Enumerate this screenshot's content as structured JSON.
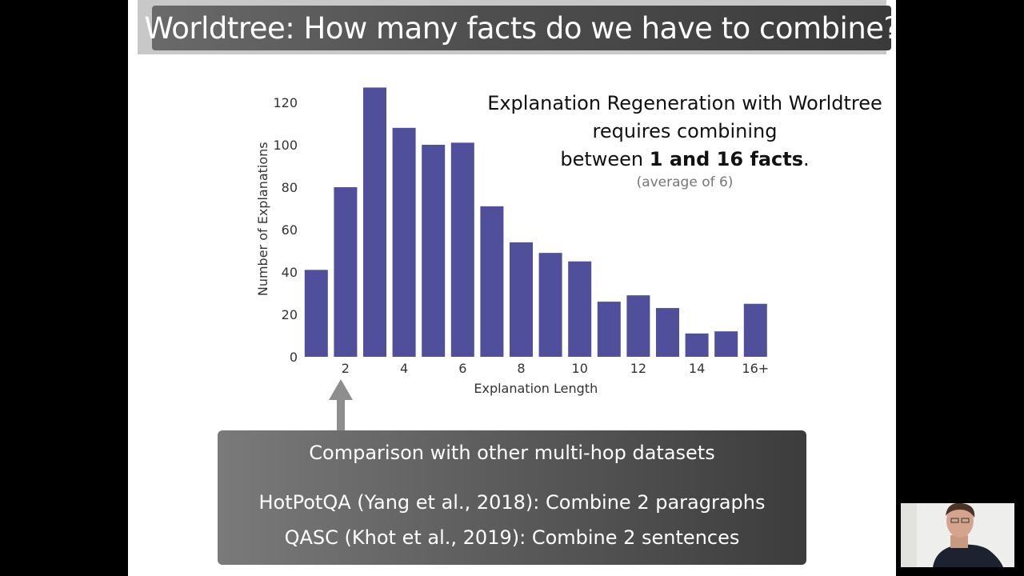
{
  "slide": {
    "title": "Worldtree: How many facts do we have to combine?"
  },
  "chart_data": {
    "type": "bar",
    "title": "",
    "xlabel": "Explanation Length",
    "ylabel": "Number of Explanations",
    "categories": [
      "1",
      "2",
      "3",
      "4",
      "5",
      "6",
      "7",
      "8",
      "9",
      "10",
      "11",
      "12",
      "13",
      "14",
      "15",
      "16+"
    ],
    "values": [
      41,
      80,
      127,
      108,
      100,
      101,
      71,
      54,
      49,
      45,
      26,
      29,
      23,
      11,
      12,
      25
    ],
    "x_tick_labels": [
      "2",
      "4",
      "6",
      "8",
      "10",
      "12",
      "14",
      "16+"
    ],
    "y_ticks": [
      0,
      20,
      40,
      60,
      80,
      100,
      120
    ],
    "ylim": [
      0,
      130
    ],
    "bar_color": "#4f4f9c",
    "grid": false,
    "legend": "none"
  },
  "note": {
    "line1": "Explanation Regeneration with Worldtree",
    "line2": "requires combining",
    "line3_prefix": "between ",
    "line3_bold": "1 and 16 facts",
    "line3_suffix": ".",
    "sub": "(average of 6)"
  },
  "comparison": {
    "heading": "Comparison with other multi-hop datasets",
    "line1": "HotPotQA (Yang et al., 2018): Combine 2 paragraphs",
    "line2": "QASC (Khot et al., 2019): Combine 2 sentences"
  }
}
